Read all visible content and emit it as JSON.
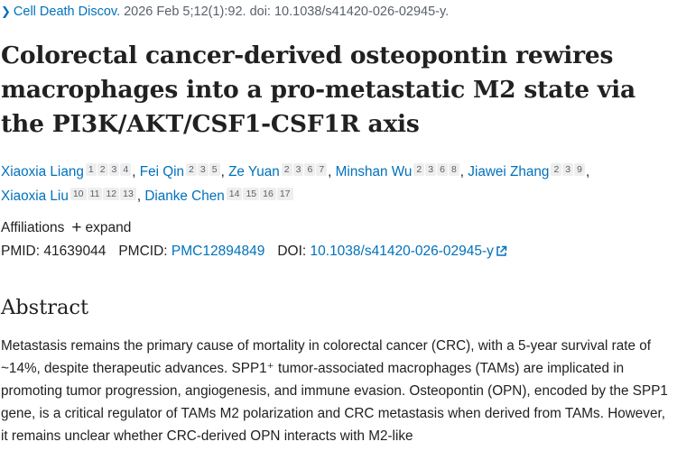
{
  "citation": {
    "journal": "Cell Death Discov.",
    "details": "2026 Feb 5;12(1):92. doi: 10.1038/s41420-026-02945-y."
  },
  "title": "Colorectal cancer-derived osteopontin rewires macrophages into a pro-metastatic M2 state via the PI3K/AKT/CSF1-CSF1R axis",
  "authors": [
    {
      "name": "Xiaoxia Liang",
      "affs": [
        "1",
        "2",
        "3",
        "4"
      ]
    },
    {
      "name": "Fei Qin",
      "affs": [
        "2",
        "3",
        "5"
      ]
    },
    {
      "name": "Ze Yuan",
      "affs": [
        "2",
        "3",
        "6",
        "7"
      ]
    },
    {
      "name": "Minshan Wu",
      "affs": [
        "2",
        "3",
        "6",
        "8"
      ]
    },
    {
      "name": "Jiawei Zhang",
      "affs": [
        "2",
        "3",
        "9"
      ]
    },
    {
      "name": "Xiaoxia Liu",
      "affs": [
        "10",
        "11",
        "12",
        "13"
      ]
    },
    {
      "name": "Dianke Chen",
      "affs": [
        "14",
        "15",
        "16",
        "17"
      ]
    }
  ],
  "affiliations": {
    "label": "Affiliations",
    "expand": "expand"
  },
  "ids": {
    "pmid_label": "PMID:",
    "pmid": "41639044",
    "pmcid_label": "PMCID:",
    "pmcid": "PMC12894849",
    "doi_label": "DOI:",
    "doi": "10.1038/s41420-026-02945-y"
  },
  "abstract": {
    "heading": "Abstract",
    "text": "Metastasis remains the primary cause of mortality in colorectal cancer (CRC), with a 5-year survival rate of ~14%, despite therapeutic advances. SPP1⁺ tumor-associated macrophages (TAMs) are implicated in promoting tumor progression, angiogenesis, and immune evasion. Osteopontin (OPN), encoded by the SPP1 gene, is a critical regulator of TAMs M2 polarization and CRC metastasis when derived from TAMs. However, it remains unclear whether CRC-derived OPN interacts with M2-like"
  }
}
